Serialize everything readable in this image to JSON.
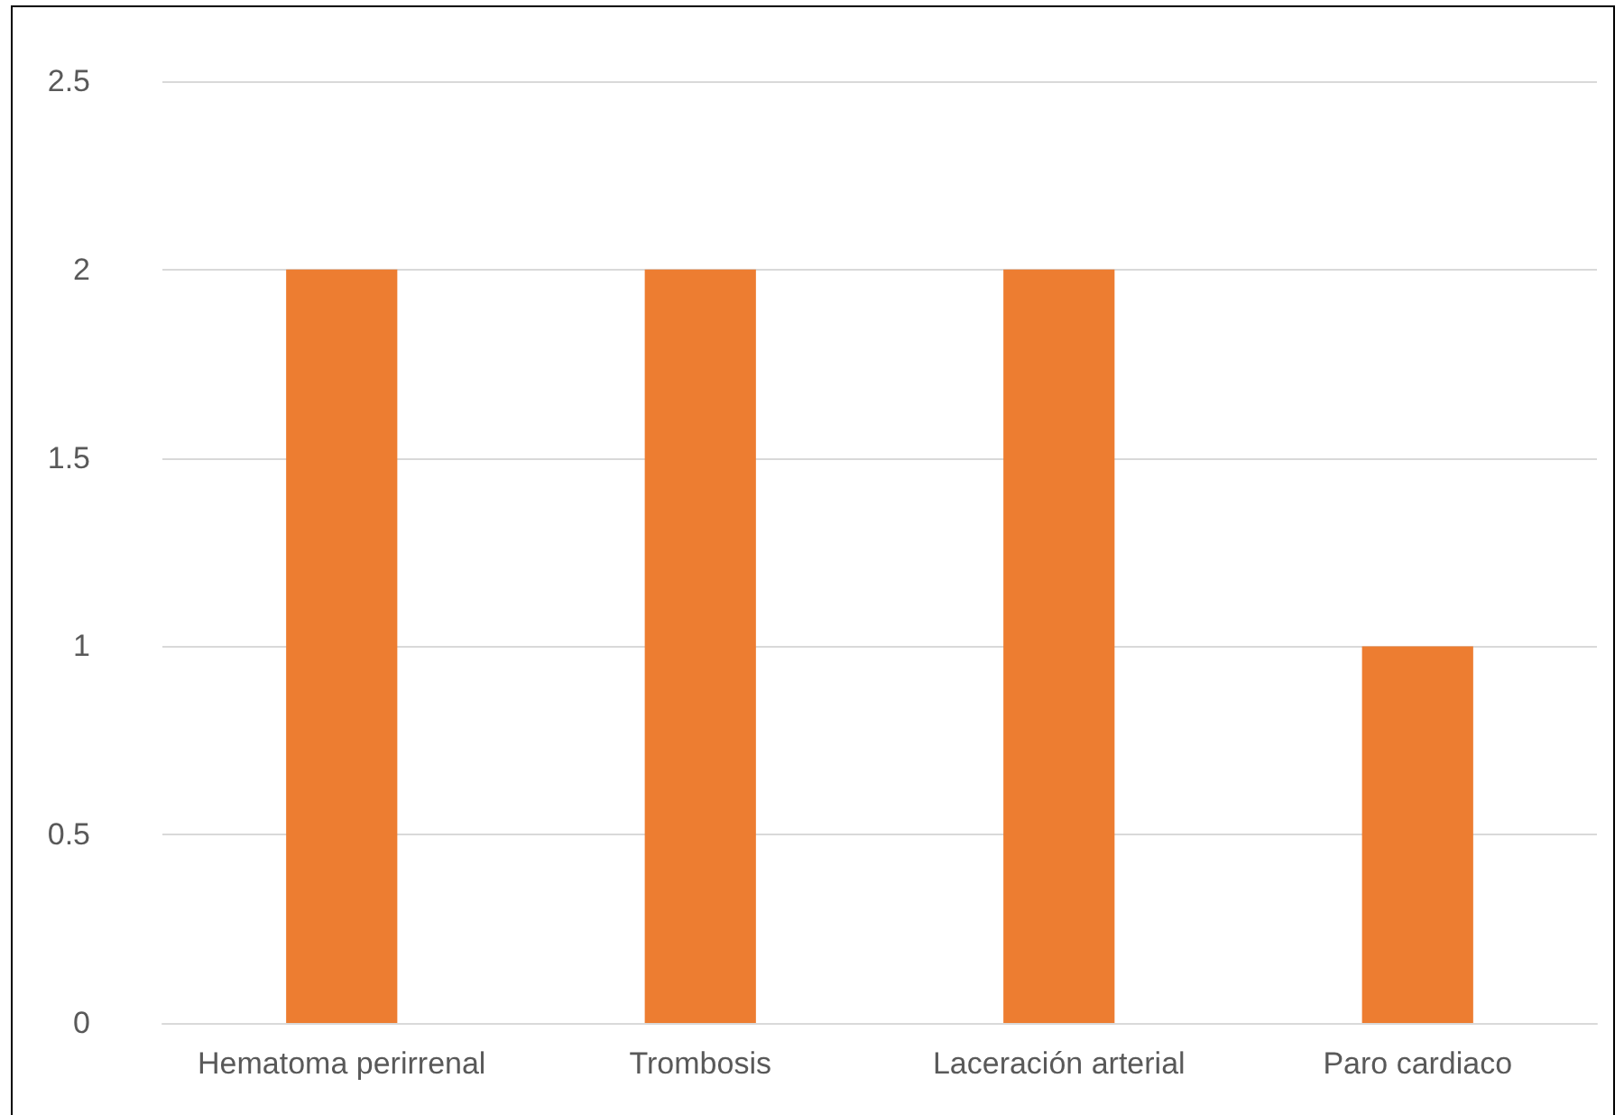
{
  "chart_data": {
    "type": "bar",
    "categories": [
      "Hematoma perirrenal",
      "Trombosis",
      "Laceración arterial",
      "Paro cardiaco"
    ],
    "values": [
      2,
      2,
      2,
      1
    ],
    "color": "#ed7d31",
    "ylim": [
      0,
      2.5
    ],
    "yticks": [
      0,
      0.5,
      1,
      1.5,
      2,
      2.5
    ],
    "grid": "y"
  }
}
